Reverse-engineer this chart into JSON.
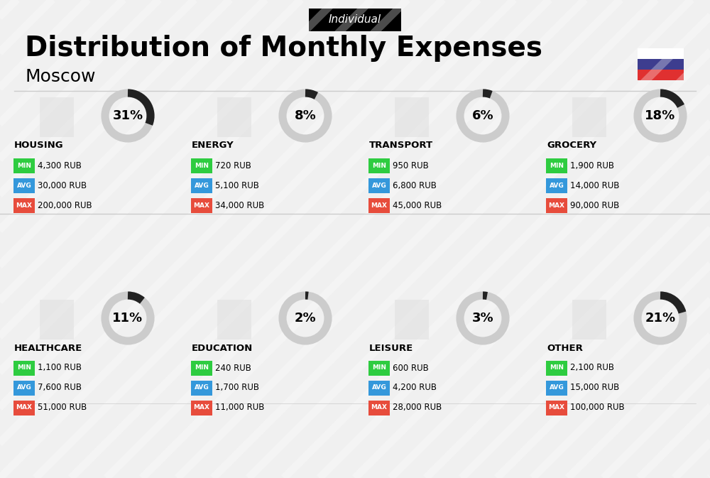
{
  "title": "Distribution of Monthly Expenses",
  "subtitle": "Moscow",
  "tag": "Individual",
  "bg_color": "#f0f0f0",
  "categories": [
    {
      "name": "HOUSING",
      "pct": 31,
      "min_val": "4,300 RUB",
      "avg_val": "30,000 RUB",
      "max_val": "200,000 RUB",
      "col": 0,
      "row": 0
    },
    {
      "name": "ENERGY",
      "pct": 8,
      "min_val": "720 RUB",
      "avg_val": "5,100 RUB",
      "max_val": "34,000 RUB",
      "col": 1,
      "row": 0
    },
    {
      "name": "TRANSPORT",
      "pct": 6,
      "min_val": "950 RUB",
      "avg_val": "6,800 RUB",
      "max_val": "45,000 RUB",
      "col": 2,
      "row": 0
    },
    {
      "name": "GROCERY",
      "pct": 18,
      "min_val": "1,900 RUB",
      "avg_val": "14,000 RUB",
      "max_val": "90,000 RUB",
      "col": 3,
      "row": 0
    },
    {
      "name": "HEALTHCARE",
      "pct": 11,
      "min_val": "1,100 RUB",
      "avg_val": "7,600 RUB",
      "max_val": "51,000 RUB",
      "col": 0,
      "row": 1
    },
    {
      "name": "EDUCATION",
      "pct": 2,
      "min_val": "240 RUB",
      "avg_val": "1,700 RUB",
      "max_val": "11,000 RUB",
      "col": 1,
      "row": 1
    },
    {
      "name": "LEISURE",
      "pct": 3,
      "min_val": "600 RUB",
      "avg_val": "4,200 RUB",
      "max_val": "28,000 RUB",
      "col": 2,
      "row": 1
    },
    {
      "name": "OTHER",
      "pct": 21,
      "min_val": "2,100 RUB",
      "avg_val": "15,000 RUB",
      "max_val": "100,000 RUB",
      "col": 3,
      "row": 1
    }
  ],
  "color_min": "#2ecc40",
  "color_avg": "#3498db",
  "color_max": "#e74c3c",
  "label_min": "MIN",
  "label_avg": "AVG",
  "label_max": "MAX",
  "ring_color_filled": "#222222",
  "ring_color_empty": "#cccccc",
  "russia_flag_blue": "#3d3d8f",
  "russia_flag_red": "#e03030"
}
